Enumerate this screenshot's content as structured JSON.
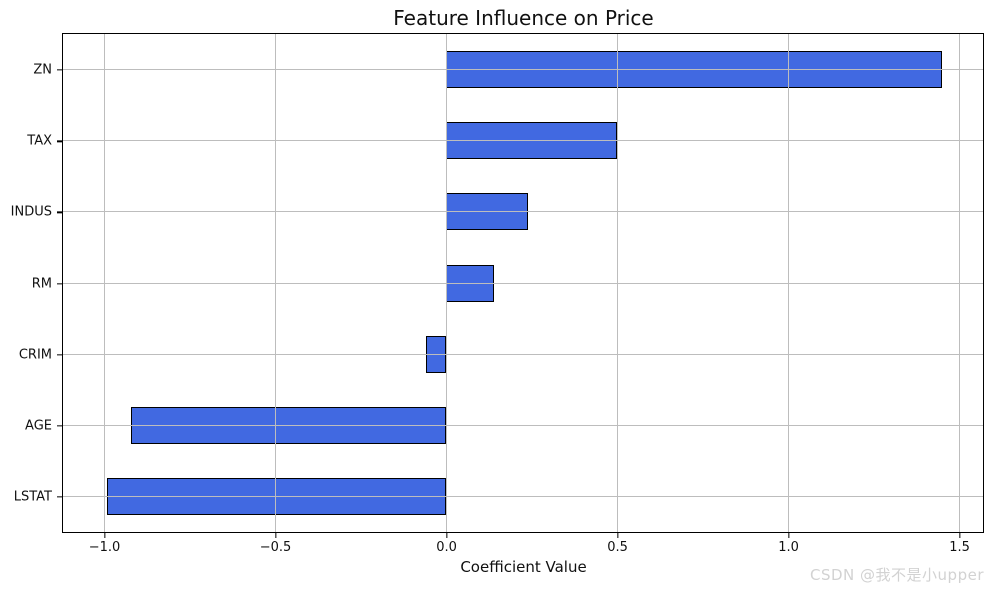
{
  "title": "Feature Influence on Price",
  "xlabel": "Coefficient Value",
  "watermark": "CSDN @我不是小upper",
  "chart_data": {
    "type": "bar",
    "orientation": "horizontal",
    "title": "Feature Influence on Price",
    "xlabel": "Coefficient Value",
    "ylabel": "",
    "categories": [
      "ZN",
      "TAX",
      "INDUS",
      "RM",
      "CRIM",
      "AGE",
      "LSTAT"
    ],
    "values": [
      1.45,
      0.5,
      0.24,
      0.14,
      -0.06,
      -0.92,
      -0.99
    ],
    "xlim": [
      -1.12,
      1.57
    ],
    "xticks": [
      -1.0,
      -0.5,
      0.0,
      0.5,
      1.0,
      1.5
    ],
    "xtick_labels": [
      "−1.0",
      "−0.5",
      "0.0",
      "0.5",
      "1.0",
      "1.5"
    ],
    "grid": true,
    "grid_on_top": true,
    "legend": "none",
    "bar_color": "#4169E1",
    "bar_edge_color": "#000000",
    "grid_color": "#bdbdbd"
  }
}
